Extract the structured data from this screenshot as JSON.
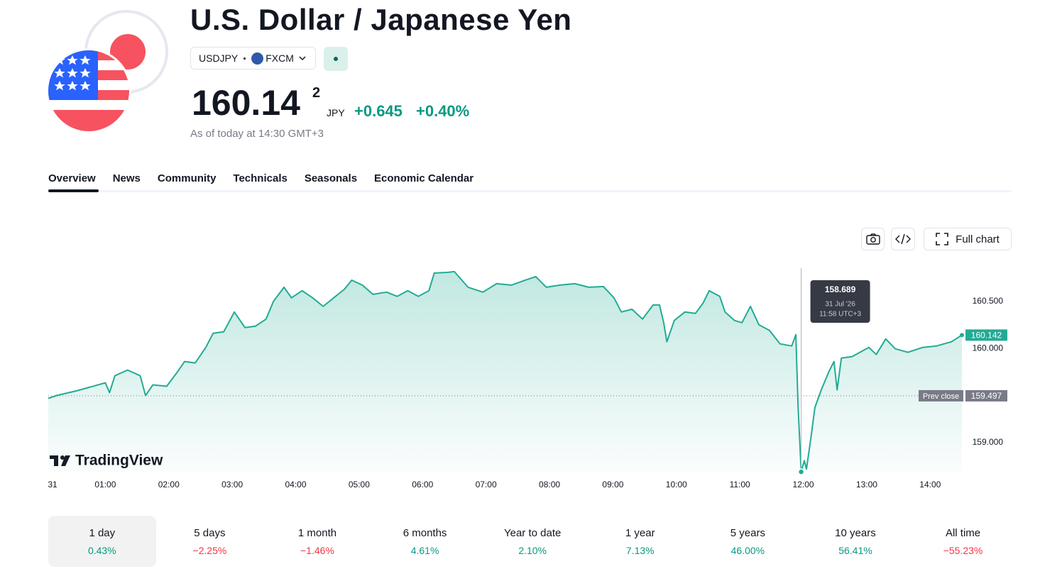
{
  "header": {
    "title": "U.S. Dollar / Japanese Yen",
    "symbol": "USDJPY",
    "exchange": "FXCM",
    "price": "160.14",
    "price_sup": "2",
    "currency": "JPY",
    "change": "+0.645",
    "change_pct": "+0.40%",
    "as_of": "As of today at 14:30 GMT+3"
  },
  "tabs": [
    "Overview",
    "News",
    "Community",
    "Technicals",
    "Seasonals",
    "Economic Calendar"
  ],
  "toolbar": {
    "full_chart": "Full chart"
  },
  "chart_data": {
    "type": "area",
    "color": "#22ab94",
    "watermark": "TradingView",
    "x": [
      6,
      14,
      34,
      60,
      64,
      69,
      81,
      93,
      98,
      105,
      118,
      128,
      135,
      145,
      155,
      162,
      172,
      182,
      192,
      202,
      212,
      219,
      229,
      236,
      246,
      256,
      266,
      276,
      286,
      293,
      303,
      313,
      326,
      336,
      346,
      356,
      366,
      371,
      383,
      390,
      403,
      417,
      430,
      444,
      457,
      467,
      477,
      490,
      504,
      517,
      531,
      541,
      548,
      558,
      568,
      578,
      584,
      588,
      591,
      598,
      608,
      618,
      625,
      631,
      641,
      646,
      655,
      662,
      670,
      678,
      688,
      698,
      709,
      713,
      715,
      718,
      721,
      723,
      727,
      731,
      737,
      744,
      749,
      752,
      756,
      766,
      776,
      782,
      789,
      798,
      807,
      819,
      833,
      846,
      860,
      870
    ],
    "values": [
      159.47,
      159.5,
      159.553,
      159.635,
      159.53,
      159.71,
      159.771,
      159.71,
      159.5,
      159.613,
      159.598,
      159.748,
      159.861,
      159.846,
      160.011,
      160.162,
      160.177,
      160.387,
      160.222,
      160.237,
      160.312,
      160.5,
      160.65,
      160.538,
      160.613,
      160.538,
      160.447,
      160.538,
      160.628,
      160.726,
      160.673,
      160.575,
      160.598,
      160.553,
      160.613,
      160.553,
      160.613,
      160.801,
      160.808,
      160.816,
      160.65,
      160.598,
      160.688,
      160.673,
      160.726,
      160.763,
      160.65,
      160.673,
      160.688,
      160.65,
      160.658,
      160.538,
      160.387,
      160.417,
      160.312,
      160.462,
      160.462,
      160.274,
      160.071,
      160.297,
      160.387,
      160.372,
      160.477,
      160.613,
      160.553,
      160.387,
      160.297,
      160.274,
      160.447,
      160.252,
      160.192,
      160.049,
      160.026,
      160.147,
      159.41,
      158.689,
      158.808,
      158.718,
      159.034,
      159.372,
      159.56,
      159.748,
      159.861,
      159.56,
      159.898,
      159.913,
      159.974,
      160.011,
      159.936,
      160.101,
      159.996,
      159.959,
      160.011,
      160.026,
      160.071,
      160.142
    ],
    "xlim": [
      0,
      870
    ],
    "xticks": [
      {
        "value": 0,
        "label": "31"
      },
      {
        "value": 60,
        "label": "01:00"
      },
      {
        "value": 120,
        "label": "02:00"
      },
      {
        "value": 180,
        "label": "03:00"
      },
      {
        "value": 240,
        "label": "04:00"
      },
      {
        "value": 300,
        "label": "05:00"
      },
      {
        "value": 360,
        "label": "06:00"
      },
      {
        "value": 420,
        "label": "07:00"
      },
      {
        "value": 480,
        "label": "08:00"
      },
      {
        "value": 540,
        "label": "09:00"
      },
      {
        "value": 600,
        "label": "10:00"
      },
      {
        "value": 660,
        "label": "11:00"
      },
      {
        "value": 720,
        "label": "12:00"
      },
      {
        "value": 780,
        "label": "13:00"
      },
      {
        "value": 840,
        "label": "14:00"
      }
    ],
    "ylim": [
      158.69,
      160.853
    ],
    "yticks": [
      {
        "value": 159,
        "label": "159.000"
      },
      {
        "value": 160,
        "label": "160.000"
      },
      {
        "value": 160.5,
        "label": "160.500"
      }
    ],
    "grid": false,
    "prev_close": {
      "label": "Prev close",
      "value": 159.497
    },
    "tooltip": {
      "date": "31 Jul '26",
      "time": "11:58 UTC+3"
    }
  },
  "periods": [
    {
      "label": "1 day",
      "change": "0.43%"
    },
    {
      "label": "5 days",
      "change": "−2.25%"
    },
    {
      "label": "1 month",
      "change": "−1.46%"
    },
    {
      "label": "6 months",
      "change": "4.61%"
    },
    {
      "label": "Year to date",
      "change": "2.10%"
    },
    {
      "label": "1 year",
      "change": "7.13%"
    },
    {
      "label": "5 years",
      "change": "46.00%"
    },
    {
      "label": "10 years",
      "change": "56.41%"
    },
    {
      "label": "All time",
      "change": "−55.23%"
    }
  ]
}
